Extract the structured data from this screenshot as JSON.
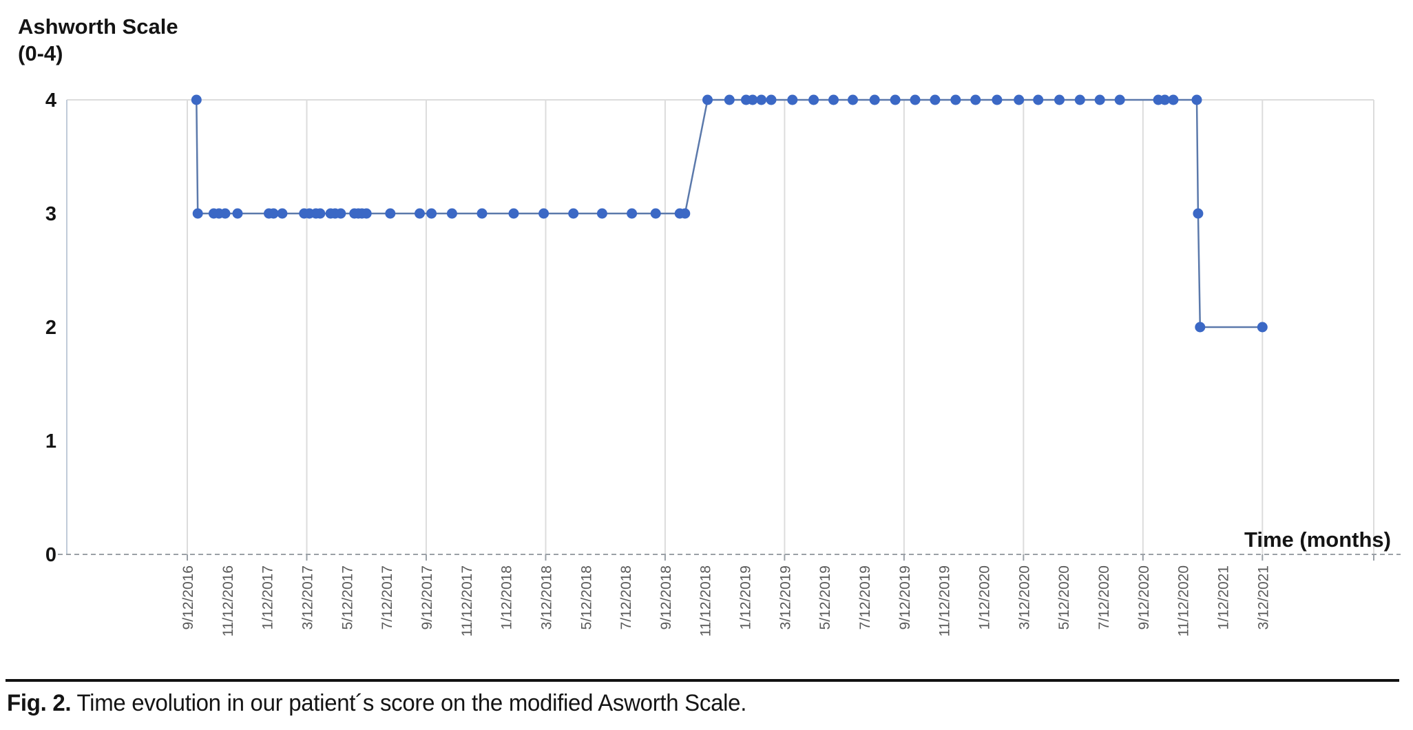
{
  "figure": {
    "y_axis_title": "Ashworth Scale\n(0-4)",
    "x_axis_title": "Time (months)",
    "caption_label": "Fig. 2.",
    "caption_text": " Time evolution in our patient´s score on the modified Asworth Scale."
  },
  "chart_data": {
    "type": "line",
    "title": "",
    "ylabel": "Ashworth Scale (0-4)",
    "xlabel": "Time (months)",
    "ylim": [
      0,
      4
    ],
    "yticks": [
      0,
      1,
      2,
      3,
      4
    ],
    "grid": "vertical-every-6-months, horizontal-only-at-y4, dashed-baseline-at-y0",
    "legend": "none",
    "x_tick_labels": [
      "9/12/2016",
      "11/12/2016",
      "1/12/2017",
      "3/12/2017",
      "5/12/2017",
      "7/12/2017",
      "9/12/2017",
      "11/12/2017",
      "1/12/2018",
      "3/12/2018",
      "5/12/2018",
      "7/12/2018",
      "9/12/2018",
      "11/12/2018",
      "1/12/2019",
      "3/12/2019",
      "5/12/2019",
      "7/12/2019",
      "9/12/2019",
      "11/12/2019",
      "1/12/2020",
      "3/12/2020",
      "5/12/2020",
      "7/12/2020",
      "9/12/2020",
      "11/12/2020",
      "1/12/2021",
      "3/12/2021"
    ],
    "gridline_tick_indices": [
      0,
      3,
      6,
      9,
      12,
      15,
      18,
      21,
      24,
      27
    ],
    "points": [
      {
        "date": "9/26/2016",
        "value": 4
      },
      {
        "date": "9/28/2016",
        "value": 3
      },
      {
        "date": "10/22/2016",
        "value": 3
      },
      {
        "date": "10/30/2016",
        "value": 3
      },
      {
        "date": "11/9/2016",
        "value": 3
      },
      {
        "date": "11/28/2016",
        "value": 3
      },
      {
        "date": "1/15/2017",
        "value": 3
      },
      {
        "date": "1/22/2017",
        "value": 3
      },
      {
        "date": "2/5/2017",
        "value": 3
      },
      {
        "date": "3/8/2017",
        "value": 3
      },
      {
        "date": "3/16/2017",
        "value": 3
      },
      {
        "date": "3/26/2017",
        "value": 3
      },
      {
        "date": "4/2/2017",
        "value": 3
      },
      {
        "date": "4/18/2017",
        "value": 3
      },
      {
        "date": "4/25/2017",
        "value": 3
      },
      {
        "date": "5/3/2017",
        "value": 3
      },
      {
        "date": "5/24/2017",
        "value": 3
      },
      {
        "date": "5/30/2017",
        "value": 3
      },
      {
        "date": "6/5/2017",
        "value": 3
      },
      {
        "date": "6/12/2017",
        "value": 3
      },
      {
        "date": "7/18/2017",
        "value": 3
      },
      {
        "date": "9/2/2017",
        "value": 3
      },
      {
        "date": "9/20/2017",
        "value": 3
      },
      {
        "date": "10/21/2017",
        "value": 3
      },
      {
        "date": "12/6/2017",
        "value": 3
      },
      {
        "date": "1/24/2018",
        "value": 3
      },
      {
        "date": "3/9/2018",
        "value": 3
      },
      {
        "date": "4/24/2018",
        "value": 3
      },
      {
        "date": "6/7/2018",
        "value": 3
      },
      {
        "date": "7/22/2018",
        "value": 3
      },
      {
        "date": "8/28/2018",
        "value": 3
      },
      {
        "date": "10/4/2018",
        "value": 3
      },
      {
        "date": "10/12/2018",
        "value": 3
      },
      {
        "date": "11/16/2018",
        "value": 4
      },
      {
        "date": "12/19/2018",
        "value": 4
      },
      {
        "date": "1/14/2019",
        "value": 4
      },
      {
        "date": "1/24/2019",
        "value": 4
      },
      {
        "date": "2/7/2019",
        "value": 4
      },
      {
        "date": "2/22/2019",
        "value": 4
      },
      {
        "date": "3/24/2019",
        "value": 4
      },
      {
        "date": "4/26/2019",
        "value": 4
      },
      {
        "date": "5/26/2019",
        "value": 4
      },
      {
        "date": "6/25/2019",
        "value": 4
      },
      {
        "date": "7/28/2019",
        "value": 4
      },
      {
        "date": "8/29/2019",
        "value": 4
      },
      {
        "date": "9/29/2019",
        "value": 4
      },
      {
        "date": "10/29/2019",
        "value": 4
      },
      {
        "date": "11/30/2019",
        "value": 4
      },
      {
        "date": "12/30/2019",
        "value": 4
      },
      {
        "date": "2/2/2020",
        "value": 4
      },
      {
        "date": "3/5/2020",
        "value": 4
      },
      {
        "date": "4/4/2020",
        "value": 4
      },
      {
        "date": "5/6/2020",
        "value": 4
      },
      {
        "date": "6/7/2020",
        "value": 4
      },
      {
        "date": "7/7/2020",
        "value": 4
      },
      {
        "date": "8/7/2020",
        "value": 4
      },
      {
        "date": "10/5/2020",
        "value": 4
      },
      {
        "date": "10/15/2020",
        "value": 4
      },
      {
        "date": "10/28/2020",
        "value": 4
      },
      {
        "date": "12/3/2020",
        "value": 4
      },
      {
        "date": "12/5/2020",
        "value": 3
      },
      {
        "date": "12/8/2020",
        "value": 2
      },
      {
        "date": "3/12/2021",
        "value": 2
      }
    ],
    "colors": {
      "marker": "#3b68c5",
      "line": "#5b79ab",
      "gridline": "#dcdcdc",
      "axis_line": "#c0cbd8",
      "zero_baseline": "#9aa0a6",
      "x_tick_label": "#595959",
      "text": "#141414"
    }
  }
}
